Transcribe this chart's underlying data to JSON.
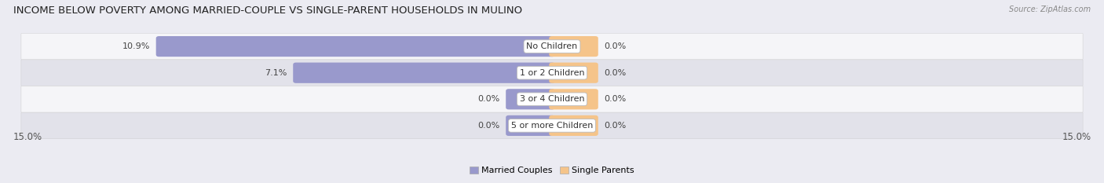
{
  "title": "INCOME BELOW POVERTY AMONG MARRIED-COUPLE VS SINGLE-PARENT HOUSEHOLDS IN MULINO",
  "source": "Source: ZipAtlas.com",
  "categories": [
    "No Children",
    "1 or 2 Children",
    "3 or 4 Children",
    "5 or more Children"
  ],
  "married_values": [
    10.9,
    7.1,
    0.0,
    0.0
  ],
  "single_values": [
    0.0,
    0.0,
    0.0,
    0.0
  ],
  "married_color": "#9999cc",
  "single_color": "#f5c48a",
  "married_label": "Married Couples",
  "single_label": "Single Parents",
  "xlim": 15.0,
  "axis_label_left": "15.0%",
  "axis_label_right": "15.0%",
  "bg_color": "#ebebf2",
  "row_light_color": "#f5f5f8",
  "row_dark_color": "#e2e2ea",
  "bar_height": 0.62,
  "title_fontsize": 9.5,
  "label_fontsize": 8,
  "tick_fontsize": 8.5,
  "source_fontsize": 7,
  "zero_bar_width": 1.2
}
